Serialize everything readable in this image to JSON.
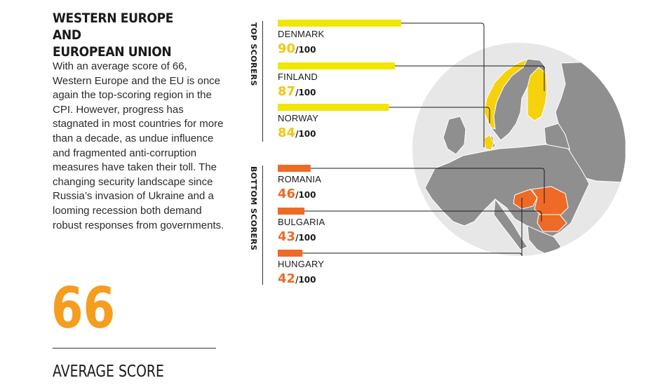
{
  "heading": {
    "title_line1": "WESTERN EUROPE AND",
    "title_line2": "EUROPEAN UNION",
    "body": "With an average score of 66, Western Europe and the EU is once again the top-scoring region in the CPI. However, progress has stagnated in most countries for more than a decade, as undue influence and fragmented anti-corruption measures have taken their toll. The changing security landscape since Russia’s invasion of Ukraine and a looming recession both demand robust responses from governments."
  },
  "average": {
    "value": "66",
    "label": "AVERAGE SCORE"
  },
  "colors": {
    "top": "#f2e500",
    "top_score_text": "#f2c70f",
    "bottom": "#ee6a26",
    "average": "#f59d1e",
    "map_land": "#8f8f8f",
    "map_sea": "#e7e7e7",
    "map_highlight_top": "#f6d20d",
    "map_highlight_bottom": "#ee6a26"
  },
  "chart_data": {
    "type": "bar",
    "score_max": 100,
    "groups": [
      {
        "label": "TOP SCORERS",
        "color_key": "top",
        "items": [
          {
            "country": "DENMARK",
            "score": 90,
            "suffix": "/100"
          },
          {
            "country": "FINLAND",
            "score": 87,
            "suffix": "/100"
          },
          {
            "country": "NORWAY",
            "score": 84,
            "suffix": "/100"
          }
        ]
      },
      {
        "label": "BOTTOM SCORERS",
        "color_key": "bottom",
        "items": [
          {
            "country": "ROMANIA",
            "score": 46,
            "suffix": "/100"
          },
          {
            "country": "BULGARIA",
            "score": 43,
            "suffix": "/100"
          },
          {
            "country": "HUNGARY",
            "score": 42,
            "suffix": "/100"
          }
        ]
      }
    ]
  }
}
